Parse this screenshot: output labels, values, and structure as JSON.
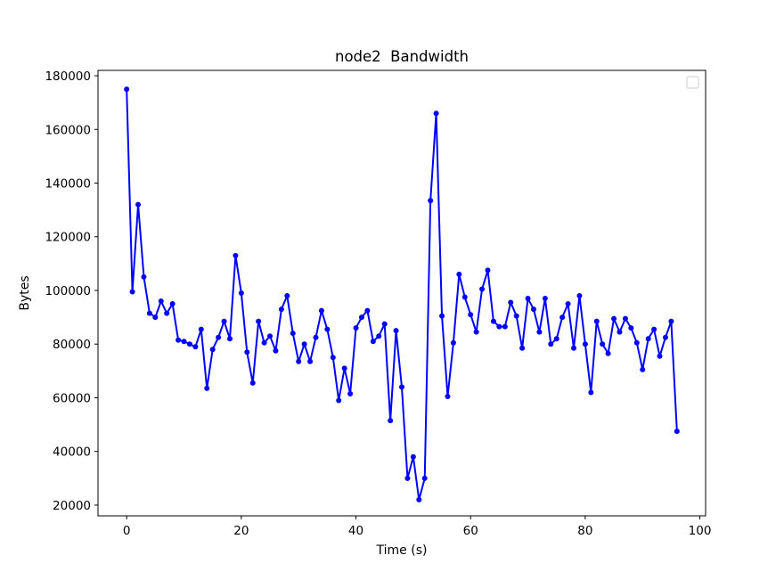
{
  "chart_data": {
    "type": "line",
    "title": "node2  Bandwidth",
    "xlabel": "Time (s)",
    "ylabel": "Bytes",
    "xlim": [
      -5,
      101
    ],
    "ylim": [
      16000,
      182000
    ],
    "x_ticks": [
      0,
      20,
      40,
      60,
      80,
      100
    ],
    "y_ticks": [
      20000,
      40000,
      60000,
      80000,
      100000,
      120000,
      140000,
      160000,
      180000
    ],
    "grid": false,
    "legend": {
      "placement": "top-right",
      "entries": []
    },
    "series": [
      {
        "color": "#0000ff",
        "marker": "circle",
        "x": [
          0,
          1,
          2,
          3,
          4,
          5,
          6,
          7,
          8,
          9,
          10,
          11,
          12,
          13,
          14,
          15,
          16,
          17,
          18,
          19,
          20,
          21,
          22,
          23,
          24,
          25,
          26,
          27,
          28,
          29,
          30,
          31,
          32,
          33,
          34,
          35,
          36,
          37,
          38,
          39,
          40,
          41,
          42,
          43,
          44,
          45,
          46,
          47,
          48,
          49,
          50,
          51,
          52,
          53,
          54,
          55,
          56,
          57,
          58,
          59,
          60,
          61,
          62,
          63,
          64,
          65,
          66,
          67,
          68,
          69,
          70,
          71,
          72,
          73,
          74,
          75,
          76,
          77,
          78,
          79,
          80,
          81,
          82,
          83,
          84,
          85,
          86,
          87,
          88,
          89,
          90,
          91,
          92,
          93,
          94,
          95,
          96
        ],
        "values": [
          175000,
          99500,
          132000,
          105000,
          91500,
          90000,
          96000,
          91500,
          95000,
          81500,
          81000,
          80000,
          79000,
          85500,
          63500,
          78000,
          82500,
          88500,
          82000,
          113000,
          99000,
          77000,
          65500,
          88500,
          80500,
          83000,
          77500,
          93000,
          98000,
          84000,
          73500,
          80000,
          73500,
          82500,
          92500,
          85500,
          75000,
          59000,
          71000,
          61500,
          86000,
          90000,
          92500,
          81000,
          83000,
          87500,
          51500,
          85000,
          64000,
          30000,
          38000,
          22000,
          30000,
          133500,
          166000,
          90500,
          60500,
          80500,
          106000,
          97500,
          91000,
          84500,
          100500,
          107500,
          88500,
          86500,
          86500,
          95500,
          90500,
          78500,
          97000,
          93000,
          84500,
          97000,
          80000,
          82000,
          90000,
          95000,
          78500,
          98000,
          80000,
          62000,
          88500,
          80000,
          76500,
          89500,
          84500,
          89500,
          86000,
          80500,
          70500,
          82000,
          85500,
          75500,
          82500,
          88500,
          47500
        ]
      }
    ]
  }
}
